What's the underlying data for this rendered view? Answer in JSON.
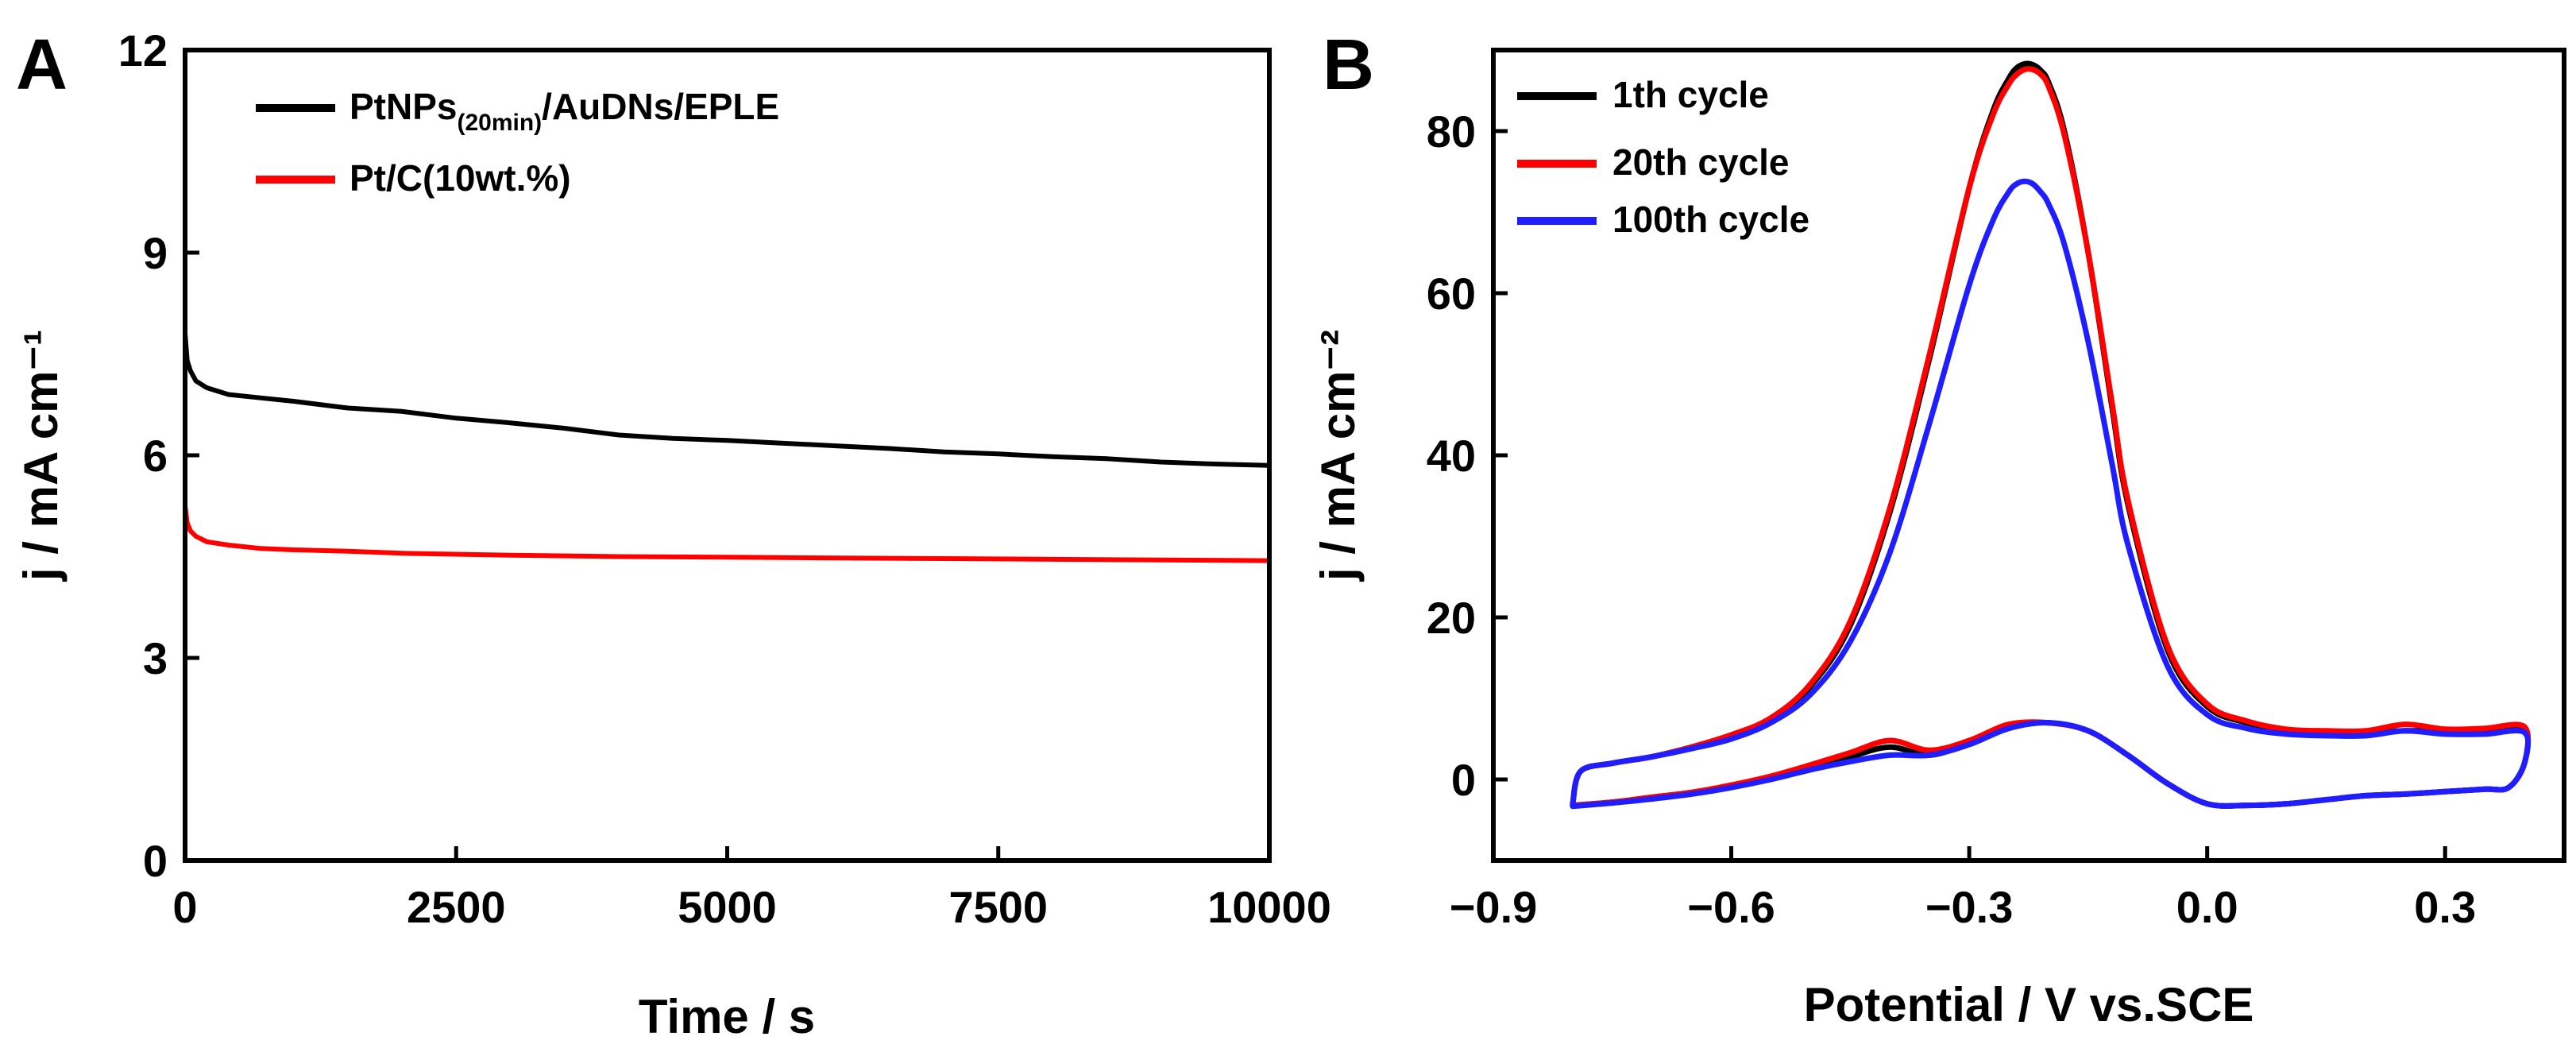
{
  "chart_data": [
    {
      "panel": "A",
      "type": "line",
      "title": "",
      "xlabel": "Time / s",
      "ylabel": "j / mA cm⁻¹",
      "xlim": [
        0,
        10000
      ],
      "ylim": [
        0,
        12
      ],
      "xticks": [
        0,
        2500,
        5000,
        7500,
        10000
      ],
      "xtick_labels": [
        "0",
        "2500",
        "5000",
        "7500",
        "10000"
      ],
      "yticks": [
        0,
        3,
        6,
        9,
        12
      ],
      "ytick_labels": [
        "0",
        "3",
        "6",
        "9",
        "12"
      ],
      "legend_position": "top-left",
      "series": [
        {
          "name": "PtNPs(20min)/AuDNs/EPLE",
          "legend_parts": [
            "PtNPs",
            "(20min)",
            "/AuDNs/EPLE"
          ],
          "color": "#000000",
          "x": [
            0,
            20,
            50,
            100,
            200,
            400,
            700,
            1000,
            1500,
            2000,
            2500,
            3000,
            3500,
            4000,
            4500,
            5000,
            5500,
            6000,
            6500,
            7000,
            7500,
            8000,
            8500,
            9000,
            9500,
            10000
          ],
          "y": [
            7.8,
            7.4,
            7.25,
            7.1,
            7.0,
            6.9,
            6.85,
            6.8,
            6.7,
            6.65,
            6.55,
            6.48,
            6.4,
            6.3,
            6.25,
            6.22,
            6.18,
            6.14,
            6.1,
            6.05,
            6.02,
            5.98,
            5.95,
            5.9,
            5.87,
            5.85
          ]
        },
        {
          "name": "Pt/C(10wt.%)",
          "color": "#ff0000",
          "x": [
            0,
            20,
            50,
            100,
            200,
            400,
            700,
            1000,
            1500,
            2000,
            3000,
            4000,
            5000,
            6000,
            7000,
            8000,
            9000,
            10000
          ],
          "y": [
            5.25,
            5.0,
            4.88,
            4.8,
            4.72,
            4.67,
            4.62,
            4.6,
            4.58,
            4.55,
            4.52,
            4.5,
            4.49,
            4.48,
            4.47,
            4.46,
            4.45,
            4.44
          ]
        }
      ]
    },
    {
      "panel": "B",
      "type": "line",
      "title": "",
      "xlabel": "Potential / V vs.SCE",
      "ylabel": "j / mA cm⁻²",
      "xlim": [
        -0.9,
        0.45
      ],
      "ylim": [
        -10,
        90
      ],
      "xticks": [
        -0.9,
        -0.6,
        -0.3,
        0.0,
        0.3
      ],
      "xtick_labels": [
        "−0.9",
        "−0.6",
        "−0.3",
        "0.0",
        "0.3"
      ],
      "yticks": [
        0,
        20,
        40,
        60,
        80
      ],
      "ytick_labels": [
        "0",
        "20",
        "40",
        "60",
        "80"
      ],
      "legend_position": "top-left",
      "series": [
        {
          "name": "1th cycle",
          "color": "#000000",
          "forward": {
            "x": [
              -0.8,
              -0.79,
              -0.75,
              -0.7,
              -0.65,
              -0.6,
              -0.55,
              -0.5,
              -0.45,
              -0.4,
              -0.35,
              -0.3,
              -0.27,
              -0.25,
              -0.24,
              -0.23,
              -0.22,
              -0.21,
              -0.2,
              -0.18,
              -0.15,
              -0.12,
              -0.1,
              -0.05,
              0.0,
              0.05,
              0.1,
              0.15,
              0.2,
              0.25,
              0.3,
              0.35,
              0.4
            ],
            "y": [
              -3.0,
              1.0,
              2.0,
              2.8,
              4.0,
              5.5,
              7.5,
              11.5,
              19.0,
              33.0,
              52.0,
              73.0,
              82.5,
              86.5,
              87.8,
              88.3,
              88.2,
              87.5,
              86.0,
              80.0,
              65.0,
              46.0,
              34.0,
              16.0,
              9.0,
              7.0,
              6.0,
              5.8,
              5.8,
              6.0,
              6.0,
              6.0,
              6.2
            ]
          },
          "reverse": {
            "x": [
              0.4,
              0.4,
              0.38,
              0.35,
              0.3,
              0.25,
              0.2,
              0.15,
              0.1,
              0.05,
              0.0,
              -0.05,
              -0.1,
              -0.15,
              -0.2,
              -0.25,
              -0.3,
              -0.35,
              -0.4,
              -0.45,
              -0.5,
              -0.55,
              -0.6,
              -0.65,
              -0.7,
              -0.75,
              -0.8
            ],
            "y": [
              6.2,
              2.0,
              -1.0,
              -1.2,
              -1.5,
              -1.8,
              -2.0,
              -2.5,
              -3.0,
              -3.2,
              -3.0,
              -0.5,
              3.0,
              6.0,
              7.0,
              6.5,
              4.5,
              3.0,
              4.0,
              2.8,
              1.5,
              0.2,
              -0.8,
              -1.6,
              -2.2,
              -2.8,
              -3.2
            ]
          }
        },
        {
          "name": "20th cycle",
          "color": "#ff0000",
          "forward": {
            "x": [
              -0.8,
              -0.79,
              -0.75,
              -0.7,
              -0.65,
              -0.6,
              -0.55,
              -0.5,
              -0.45,
              -0.4,
              -0.35,
              -0.3,
              -0.27,
              -0.25,
              -0.24,
              -0.23,
              -0.22,
              -0.21,
              -0.2,
              -0.18,
              -0.15,
              -0.12,
              -0.1,
              -0.05,
              0.0,
              0.05,
              0.1,
              0.15,
              0.2,
              0.25,
              0.3,
              0.35,
              0.4
            ],
            "y": [
              -3.0,
              1.0,
              2.0,
              2.8,
              4.0,
              5.5,
              7.6,
              11.8,
              19.5,
              33.5,
              52.5,
              73.0,
              82.0,
              85.8,
              87.0,
              87.6,
              87.6,
              87.0,
              85.5,
              79.5,
              65.0,
              46.5,
              34.5,
              16.5,
              9.3,
              7.2,
              6.2,
              6.0,
              6.0,
              6.8,
              6.2,
              6.3,
              6.5
            ]
          },
          "reverse": {
            "x": [
              0.4,
              0.4,
              0.38,
              0.35,
              0.3,
              0.25,
              0.2,
              0.15,
              0.1,
              0.05,
              0.0,
              -0.05,
              -0.1,
              -0.15,
              -0.2,
              -0.25,
              -0.3,
              -0.35,
              -0.4,
              -0.45,
              -0.5,
              -0.55,
              -0.6,
              -0.65,
              -0.7,
              -0.75,
              -0.8
            ],
            "y": [
              6.5,
              2.0,
              -1.0,
              -1.2,
              -1.5,
              -1.8,
              -2.0,
              -2.5,
              -3.0,
              -3.2,
              -3.0,
              -0.5,
              3.0,
              6.0,
              7.0,
              6.8,
              4.8,
              3.6,
              4.8,
              3.3,
              1.8,
              0.4,
              -0.7,
              -1.6,
              -2.2,
              -2.8,
              -3.2
            ]
          }
        },
        {
          "name": "100th cycle",
          "color": "#1e1eff",
          "forward": {
            "x": [
              -0.8,
              -0.79,
              -0.75,
              -0.7,
              -0.65,
              -0.6,
              -0.55,
              -0.5,
              -0.45,
              -0.4,
              -0.35,
              -0.3,
              -0.27,
              -0.25,
              -0.24,
              -0.23,
              -0.22,
              -0.21,
              -0.2,
              -0.18,
              -0.15,
              -0.12,
              -0.1,
              -0.05,
              0.0,
              0.05,
              0.1,
              0.15,
              0.2,
              0.25,
              0.3,
              0.35,
              0.4
            ],
            "y": [
              -3.0,
              1.0,
              2.0,
              2.8,
              3.8,
              5.0,
              7.0,
              10.5,
              17.0,
              28.0,
              44.0,
              61.0,
              69.0,
              72.5,
              73.5,
              73.8,
              73.5,
              72.5,
              71.0,
              66.0,
              54.0,
              39.0,
              29.0,
              14.0,
              8.0,
              6.3,
              5.6,
              5.4,
              5.4,
              6.0,
              5.6,
              5.6,
              5.8
            ]
          },
          "reverse": {
            "x": [
              0.4,
              0.4,
              0.38,
              0.35,
              0.3,
              0.25,
              0.2,
              0.15,
              0.1,
              0.05,
              0.0,
              -0.05,
              -0.1,
              -0.15,
              -0.2,
              -0.25,
              -0.3,
              -0.35,
              -0.4,
              -0.45,
              -0.5,
              -0.55,
              -0.6,
              -0.65,
              -0.7,
              -0.75,
              -0.8
            ],
            "y": [
              5.8,
              2.0,
              -1.0,
              -1.2,
              -1.5,
              -1.8,
              -2.0,
              -2.5,
              -3.0,
              -3.2,
              -3.0,
              -0.5,
              3.0,
              6.0,
              7.0,
              6.3,
              4.3,
              3.0,
              3.0,
              2.2,
              1.2,
              0.0,
              -1.0,
              -1.8,
              -2.4,
              -2.9,
              -3.3
            ]
          }
        }
      ]
    }
  ]
}
